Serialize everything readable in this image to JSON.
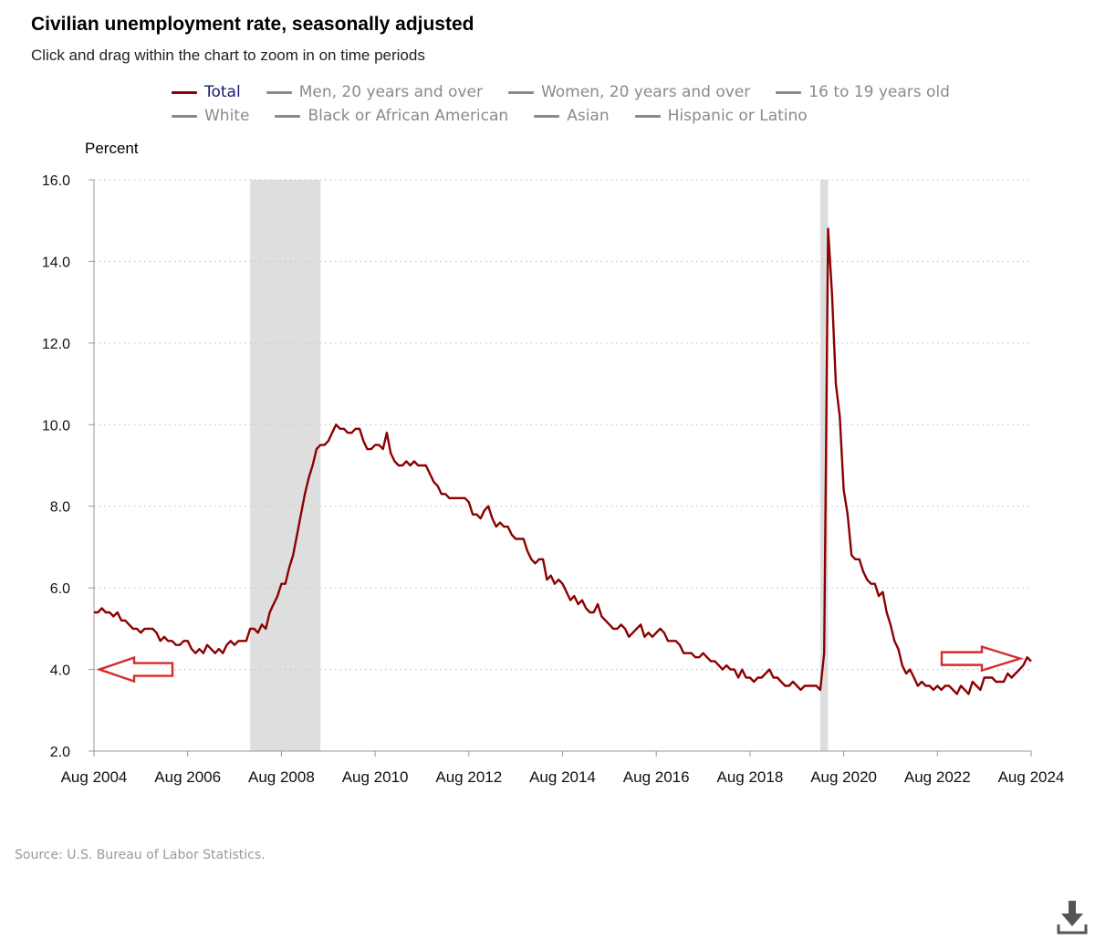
{
  "header": {
    "title": "Civilian unemployment rate, seasonally adjusted",
    "subtitle": "Click and drag within the chart to zoom in on time periods"
  },
  "legend": {
    "row1": [
      {
        "label": "Total",
        "active": true
      },
      {
        "label": "Men, 20 years and over",
        "active": false
      },
      {
        "label": "Women, 20 years and over",
        "active": false
      },
      {
        "label": "16 to 19 years old",
        "active": false
      }
    ],
    "row2": [
      {
        "label": "White",
        "active": false
      },
      {
        "label": "Black or African American",
        "active": false
      },
      {
        "label": "Asian",
        "active": false
      },
      {
        "label": "Hispanic or Latino",
        "active": false
      }
    ]
  },
  "footer": {
    "source": "Source: U.S. Bureau of Labor Statistics."
  },
  "icons": {
    "download": "download-icon",
    "arrow": "arrow-icon"
  },
  "colors": {
    "series": "#8b0000",
    "grid": "#c8c8c8",
    "recession": "#dedede",
    "arrow": "#d62b2b"
  },
  "chart_data": {
    "type": "line",
    "title": "Civilian unemployment rate, seasonally adjusted",
    "ylabel": "Percent",
    "xlabel": "",
    "ylim": [
      2.0,
      16.0
    ],
    "xlim": [
      "2004-08",
      "2024-08"
    ],
    "yticks": [
      "2.0",
      "4.0",
      "6.0",
      "8.0",
      "10.0",
      "12.0",
      "14.0",
      "16.0"
    ],
    "xticks": [
      "Aug 2004",
      "Aug 2006",
      "Aug 2008",
      "Aug 2010",
      "Aug 2012",
      "Aug 2014",
      "Aug 2016",
      "Aug 2018",
      "Aug 2020",
      "Aug 2022",
      "Aug 2024"
    ],
    "grid": true,
    "legend_position": "top",
    "recessions": [
      [
        "2007-12",
        "2009-06"
      ],
      [
        "2020-02",
        "2020-04"
      ]
    ],
    "annotations": [
      {
        "type": "arrow",
        "direction": "left",
        "at": [
          "2004-08",
          4.0
        ]
      },
      {
        "type": "arrow",
        "direction": "right",
        "at": [
          "2024-08",
          4.2
        ]
      }
    ],
    "series": [
      {
        "name": "Total",
        "points": [
          [
            "2004-08",
            5.4
          ],
          [
            "2004-09",
            5.4
          ],
          [
            "2004-10",
            5.5
          ],
          [
            "2004-11",
            5.4
          ],
          [
            "2004-12",
            5.4
          ],
          [
            "2005-01",
            5.3
          ],
          [
            "2005-02",
            5.4
          ],
          [
            "2005-03",
            5.2
          ],
          [
            "2005-04",
            5.2
          ],
          [
            "2005-05",
            5.1
          ],
          [
            "2005-06",
            5.0
          ],
          [
            "2005-07",
            5.0
          ],
          [
            "2005-08",
            4.9
          ],
          [
            "2005-09",
            5.0
          ],
          [
            "2005-10",
            5.0
          ],
          [
            "2005-11",
            5.0
          ],
          [
            "2005-12",
            4.9
          ],
          [
            "2006-01",
            4.7
          ],
          [
            "2006-02",
            4.8
          ],
          [
            "2006-03",
            4.7
          ],
          [
            "2006-04",
            4.7
          ],
          [
            "2006-05",
            4.6
          ],
          [
            "2006-06",
            4.6
          ],
          [
            "2006-07",
            4.7
          ],
          [
            "2006-08",
            4.7
          ],
          [
            "2006-09",
            4.5
          ],
          [
            "2006-10",
            4.4
          ],
          [
            "2006-11",
            4.5
          ],
          [
            "2006-12",
            4.4
          ],
          [
            "2007-01",
            4.6
          ],
          [
            "2007-02",
            4.5
          ],
          [
            "2007-03",
            4.4
          ],
          [
            "2007-04",
            4.5
          ],
          [
            "2007-05",
            4.4
          ],
          [
            "2007-06",
            4.6
          ],
          [
            "2007-07",
            4.7
          ],
          [
            "2007-08",
            4.6
          ],
          [
            "2007-09",
            4.7
          ],
          [
            "2007-10",
            4.7
          ],
          [
            "2007-11",
            4.7
          ],
          [
            "2007-12",
            5.0
          ],
          [
            "2008-01",
            5.0
          ],
          [
            "2008-02",
            4.9
          ],
          [
            "2008-03",
            5.1
          ],
          [
            "2008-04",
            5.0
          ],
          [
            "2008-05",
            5.4
          ],
          [
            "2008-06",
            5.6
          ],
          [
            "2008-07",
            5.8
          ],
          [
            "2008-08",
            6.1
          ],
          [
            "2008-09",
            6.1
          ],
          [
            "2008-10",
            6.5
          ],
          [
            "2008-11",
            6.8
          ],
          [
            "2008-12",
            7.3
          ],
          [
            "2009-01",
            7.8
          ],
          [
            "2009-02",
            8.3
          ],
          [
            "2009-03",
            8.7
          ],
          [
            "2009-04",
            9.0
          ],
          [
            "2009-05",
            9.4
          ],
          [
            "2009-06",
            9.5
          ],
          [
            "2009-07",
            9.5
          ],
          [
            "2009-08",
            9.6
          ],
          [
            "2009-09",
            9.8
          ],
          [
            "2009-10",
            10.0
          ],
          [
            "2009-11",
            9.9
          ],
          [
            "2009-12",
            9.9
          ],
          [
            "2010-01",
            9.8
          ],
          [
            "2010-02",
            9.8
          ],
          [
            "2010-03",
            9.9
          ],
          [
            "2010-04",
            9.9
          ],
          [
            "2010-05",
            9.6
          ],
          [
            "2010-06",
            9.4
          ],
          [
            "2010-07",
            9.4
          ],
          [
            "2010-08",
            9.5
          ],
          [
            "2010-09",
            9.5
          ],
          [
            "2010-10",
            9.4
          ],
          [
            "2010-11",
            9.8
          ],
          [
            "2010-12",
            9.3
          ],
          [
            "2011-01",
            9.1
          ],
          [
            "2011-02",
            9.0
          ],
          [
            "2011-03",
            9.0
          ],
          [
            "2011-04",
            9.1
          ],
          [
            "2011-05",
            9.0
          ],
          [
            "2011-06",
            9.1
          ],
          [
            "2011-07",
            9.0
          ],
          [
            "2011-08",
            9.0
          ],
          [
            "2011-09",
            9.0
          ],
          [
            "2011-10",
            8.8
          ],
          [
            "2011-11",
            8.6
          ],
          [
            "2011-12",
            8.5
          ],
          [
            "2012-01",
            8.3
          ],
          [
            "2012-02",
            8.3
          ],
          [
            "2012-03",
            8.2
          ],
          [
            "2012-04",
            8.2
          ],
          [
            "2012-05",
            8.2
          ],
          [
            "2012-06",
            8.2
          ],
          [
            "2012-07",
            8.2
          ],
          [
            "2012-08",
            8.1
          ],
          [
            "2012-09",
            7.8
          ],
          [
            "2012-10",
            7.8
          ],
          [
            "2012-11",
            7.7
          ],
          [
            "2012-12",
            7.9
          ],
          [
            "2013-01",
            8.0
          ],
          [
            "2013-02",
            7.7
          ],
          [
            "2013-03",
            7.5
          ],
          [
            "2013-04",
            7.6
          ],
          [
            "2013-05",
            7.5
          ],
          [
            "2013-06",
            7.5
          ],
          [
            "2013-07",
            7.3
          ],
          [
            "2013-08",
            7.2
          ],
          [
            "2013-09",
            7.2
          ],
          [
            "2013-10",
            7.2
          ],
          [
            "2013-11",
            6.9
          ],
          [
            "2013-12",
            6.7
          ],
          [
            "2014-01",
            6.6
          ],
          [
            "2014-02",
            6.7
          ],
          [
            "2014-03",
            6.7
          ],
          [
            "2014-04",
            6.2
          ],
          [
            "2014-05",
            6.3
          ],
          [
            "2014-06",
            6.1
          ],
          [
            "2014-07",
            6.2
          ],
          [
            "2014-08",
            6.1
          ],
          [
            "2014-09",
            5.9
          ],
          [
            "2014-10",
            5.7
          ],
          [
            "2014-11",
            5.8
          ],
          [
            "2014-12",
            5.6
          ],
          [
            "2015-01",
            5.7
          ],
          [
            "2015-02",
            5.5
          ],
          [
            "2015-03",
            5.4
          ],
          [
            "2015-04",
            5.4
          ],
          [
            "2015-05",
            5.6
          ],
          [
            "2015-06",
            5.3
          ],
          [
            "2015-07",
            5.2
          ],
          [
            "2015-08",
            5.1
          ],
          [
            "2015-09",
            5.0
          ],
          [
            "2015-10",
            5.0
          ],
          [
            "2015-11",
            5.1
          ],
          [
            "2015-12",
            5.0
          ],
          [
            "2016-01",
            4.8
          ],
          [
            "2016-02",
            4.9
          ],
          [
            "2016-03",
            5.0
          ],
          [
            "2016-04",
            5.1
          ],
          [
            "2016-05",
            4.8
          ],
          [
            "2016-06",
            4.9
          ],
          [
            "2016-07",
            4.8
          ],
          [
            "2016-08",
            4.9
          ],
          [
            "2016-09",
            5.0
          ],
          [
            "2016-10",
            4.9
          ],
          [
            "2016-11",
            4.7
          ],
          [
            "2016-12",
            4.7
          ],
          [
            "2017-01",
            4.7
          ],
          [
            "2017-02",
            4.6
          ],
          [
            "2017-03",
            4.4
          ],
          [
            "2017-04",
            4.4
          ],
          [
            "2017-05",
            4.4
          ],
          [
            "2017-06",
            4.3
          ],
          [
            "2017-07",
            4.3
          ],
          [
            "2017-08",
            4.4
          ],
          [
            "2017-09",
            4.3
          ],
          [
            "2017-10",
            4.2
          ],
          [
            "2017-11",
            4.2
          ],
          [
            "2017-12",
            4.1
          ],
          [
            "2018-01",
            4.0
          ],
          [
            "2018-02",
            4.1
          ],
          [
            "2018-03",
            4.0
          ],
          [
            "2018-04",
            4.0
          ],
          [
            "2018-05",
            3.8
          ],
          [
            "2018-06",
            4.0
          ],
          [
            "2018-07",
            3.8
          ],
          [
            "2018-08",
            3.8
          ],
          [
            "2018-09",
            3.7
          ],
          [
            "2018-10",
            3.8
          ],
          [
            "2018-11",
            3.8
          ],
          [
            "2018-12",
            3.9
          ],
          [
            "2019-01",
            4.0
          ],
          [
            "2019-02",
            3.8
          ],
          [
            "2019-03",
            3.8
          ],
          [
            "2019-04",
            3.7
          ],
          [
            "2019-05",
            3.6
          ],
          [
            "2019-06",
            3.6
          ],
          [
            "2019-07",
            3.7
          ],
          [
            "2019-08",
            3.6
          ],
          [
            "2019-09",
            3.5
          ],
          [
            "2019-10",
            3.6
          ],
          [
            "2019-11",
            3.6
          ],
          [
            "2019-12",
            3.6
          ],
          [
            "2020-01",
            3.6
          ],
          [
            "2020-02",
            3.5
          ],
          [
            "2020-03",
            4.4
          ],
          [
            "2020-04",
            14.8
          ],
          [
            "2020-05",
            13.2
          ],
          [
            "2020-06",
            11.0
          ],
          [
            "2020-07",
            10.2
          ],
          [
            "2020-08",
            8.4
          ],
          [
            "2020-09",
            7.8
          ],
          [
            "2020-10",
            6.8
          ],
          [
            "2020-11",
            6.7
          ],
          [
            "2020-12",
            6.7
          ],
          [
            "2021-01",
            6.4
          ],
          [
            "2021-02",
            6.2
          ],
          [
            "2021-03",
            6.1
          ],
          [
            "2021-04",
            6.1
          ],
          [
            "2021-05",
            5.8
          ],
          [
            "2021-06",
            5.9
          ],
          [
            "2021-07",
            5.4
          ],
          [
            "2021-08",
            5.1
          ],
          [
            "2021-09",
            4.7
          ],
          [
            "2021-10",
            4.5
          ],
          [
            "2021-11",
            4.1
          ],
          [
            "2021-12",
            3.9
          ],
          [
            "2022-01",
            4.0
          ],
          [
            "2022-02",
            3.8
          ],
          [
            "2022-03",
            3.6
          ],
          [
            "2022-04",
            3.7
          ],
          [
            "2022-05",
            3.6
          ],
          [
            "2022-06",
            3.6
          ],
          [
            "2022-07",
            3.5
          ],
          [
            "2022-08",
            3.6
          ],
          [
            "2022-09",
            3.5
          ],
          [
            "2022-10",
            3.6
          ],
          [
            "2022-11",
            3.6
          ],
          [
            "2022-12",
            3.5
          ],
          [
            "2023-01",
            3.4
          ],
          [
            "2023-02",
            3.6
          ],
          [
            "2023-03",
            3.5
          ],
          [
            "2023-04",
            3.4
          ],
          [
            "2023-05",
            3.7
          ],
          [
            "2023-06",
            3.6
          ],
          [
            "2023-07",
            3.5
          ],
          [
            "2023-08",
            3.8
          ],
          [
            "2023-09",
            3.8
          ],
          [
            "2023-10",
            3.8
          ],
          [
            "2023-11",
            3.7
          ],
          [
            "2023-12",
            3.7
          ],
          [
            "2024-01",
            3.7
          ],
          [
            "2024-02",
            3.9
          ],
          [
            "2024-03",
            3.8
          ],
          [
            "2024-04",
            3.9
          ],
          [
            "2024-05",
            4.0
          ],
          [
            "2024-06",
            4.1
          ],
          [
            "2024-07",
            4.3
          ],
          [
            "2024-08",
            4.2
          ]
        ]
      }
    ]
  }
}
